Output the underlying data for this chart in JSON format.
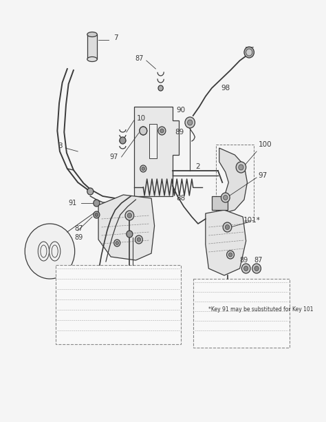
{
  "bg_color": "#f5f5f5",
  "line_color": "#3a3a3a",
  "label_color": "#222222",
  "note_text": "*Key 91 may be substituted for Key 101",
  "figsize": [
    4.74,
    6.13
  ],
  "dpi": 100,
  "lw": 0.9
}
